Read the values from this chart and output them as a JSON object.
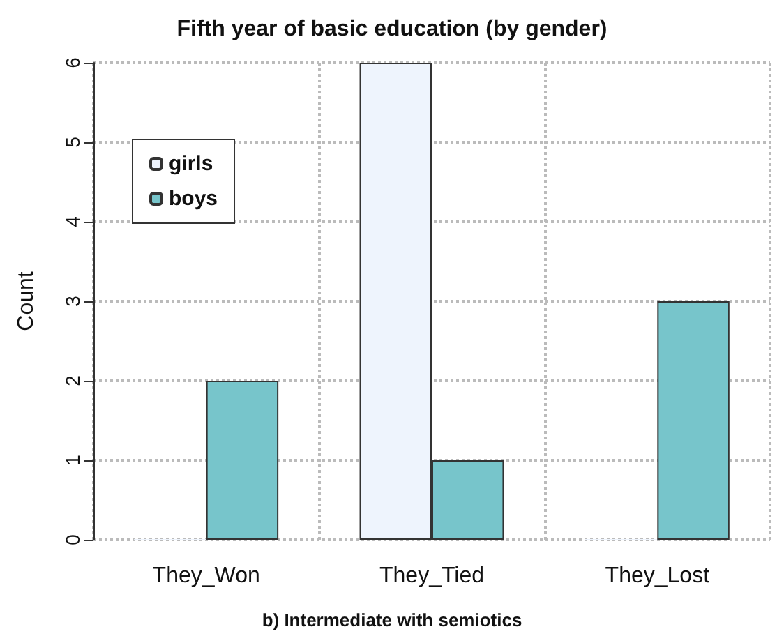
{
  "chart_data": {
    "type": "bar",
    "title": "Fifth year of basic education (by gender)",
    "ylabel": "Count",
    "categories": [
      "They_Won",
      "They_Tied",
      "They_Lost"
    ],
    "series": [
      {
        "name": "girls",
        "color": "#eef4fd",
        "values": [
          0,
          6,
          0
        ]
      },
      {
        "name": "boys",
        "color": "#77c5cb",
        "values": [
          2,
          1,
          3
        ]
      }
    ],
    "ylim": [
      0,
      6
    ],
    "yticks": [
      0,
      1,
      2,
      3,
      4,
      5,
      6
    ],
    "grid": true,
    "legend": "top left",
    "annotations": [
      "b) Intermediate with semiotics"
    ]
  }
}
